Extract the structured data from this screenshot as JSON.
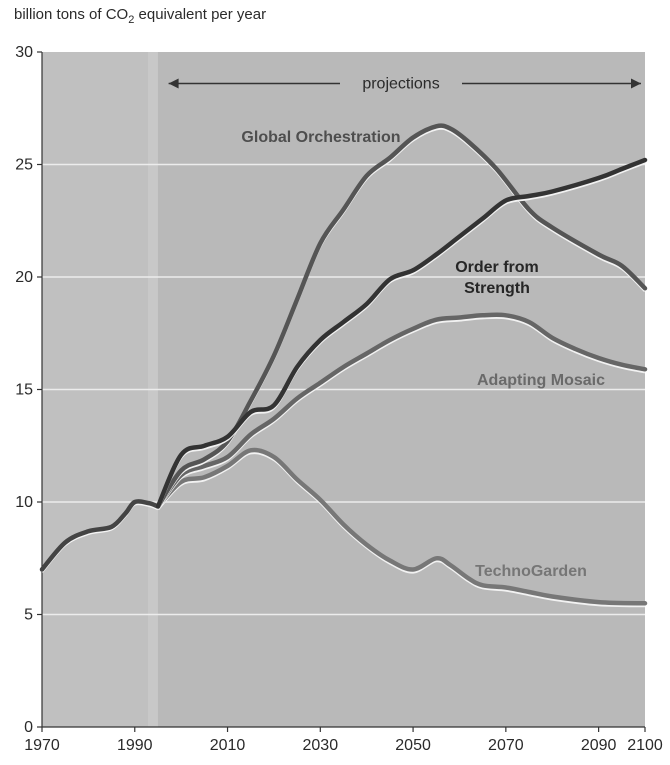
{
  "chart_data": {
    "type": "line",
    "ylabel_prefix": "billion tons of CO",
    "ylabel_subscript": "2",
    "ylabel_suffix": " equivalent per year",
    "projections_label": "projections",
    "xlim": [
      1970,
      2100
    ],
    "ylim": [
      0,
      30
    ],
    "x_ticks": [
      "1970",
      "1990",
      "2010",
      "2030",
      "2050",
      "2070",
      "2090",
      "2100"
    ],
    "x_tick_values": [
      1970,
      1990,
      2010,
      2030,
      2050,
      2070,
      2090,
      2100
    ],
    "y_ticks": [
      "0",
      "5",
      "10",
      "15",
      "20",
      "25",
      "30"
    ],
    "y_tick_values": [
      0,
      5,
      10,
      15,
      20,
      25,
      30
    ],
    "grid": true,
    "colors": {
      "plot_bg": "#b9b9b9",
      "historic_band": "#c6c6c6",
      "grid": "#ececec",
      "axis": "#333333"
    },
    "historical": {
      "x": [
        1970,
        1975,
        1980,
        1985,
        1988,
        1990,
        1993,
        1995
      ],
      "y": [
        7.0,
        8.2,
        8.7,
        8.9,
        9.5,
        10.0,
        9.95,
        9.8
      ],
      "color": "#444444"
    },
    "projection_start": 1995,
    "series": [
      {
        "name": "Global Orchestration",
        "color": "#555555",
        "x": [
          1995,
          2000,
          2005,
          2010,
          2015,
          2020,
          2025,
          2030,
          2035,
          2040,
          2045,
          2050,
          2055,
          2058,
          2062,
          2068,
          2075,
          2080,
          2090,
          2095,
          2100
        ],
        "y": [
          9.8,
          11.4,
          11.9,
          12.7,
          14.5,
          16.5,
          19.0,
          21.5,
          23.0,
          24.5,
          25.3,
          26.2,
          26.7,
          26.6,
          26.0,
          24.8,
          23.0,
          22.2,
          21.0,
          20.5,
          19.5
        ]
      },
      {
        "name": "Order from Strength",
        "color": "#333333",
        "x": [
          1995,
          2000,
          2005,
          2010,
          2015,
          2020,
          2025,
          2030,
          2035,
          2040,
          2045,
          2050,
          2055,
          2060,
          2065,
          2070,
          2075,
          2080,
          2090,
          2095,
          2100
        ],
        "y": [
          9.8,
          12.1,
          12.5,
          12.9,
          14.0,
          14.3,
          16.0,
          17.2,
          18.0,
          18.8,
          19.9,
          20.3,
          21.0,
          21.8,
          22.6,
          23.4,
          23.6,
          23.8,
          24.4,
          24.8,
          25.2
        ]
      },
      {
        "name": "Adapting Mosaic",
        "color": "#666666",
        "x": [
          1995,
          2000,
          2005,
          2010,
          2015,
          2020,
          2025,
          2030,
          2035,
          2040,
          2045,
          2050,
          2055,
          2060,
          2065,
          2070,
          2075,
          2080,
          2085,
          2090,
          2095,
          2100
        ],
        "y": [
          9.8,
          11.2,
          11.6,
          12.0,
          13.0,
          13.7,
          14.6,
          15.3,
          16.0,
          16.6,
          17.2,
          17.7,
          18.1,
          18.2,
          18.3,
          18.3,
          18.0,
          17.3,
          16.8,
          16.4,
          16.1,
          15.9
        ]
      },
      {
        "name": "TechnoGarden",
        "color": "#777777",
        "x": [
          1995,
          2000,
          2005,
          2010,
          2015,
          2020,
          2025,
          2030,
          2035,
          2040,
          2045,
          2050,
          2055,
          2058,
          2062,
          2065,
          2070,
          2075,
          2080,
          2090,
          2100
        ],
        "y": [
          9.8,
          10.9,
          11.1,
          11.6,
          12.3,
          12.0,
          11.0,
          10.1,
          9.0,
          8.1,
          7.4,
          7.0,
          7.5,
          7.2,
          6.6,
          6.3,
          6.2,
          6.0,
          5.8,
          5.55,
          5.5
        ]
      }
    ],
    "series_labels": [
      {
        "lines": [
          "Global Orchestration"
        ],
        "color": "#4e4e4e"
      },
      {
        "lines": [
          "Order from",
          "Strength"
        ],
        "color": "#262626"
      },
      {
        "lines": [
          "Adapting Mosaic"
        ],
        "color": "#6a6a6a"
      },
      {
        "lines": [
          "TechnoGarden"
        ],
        "color": "#767676"
      }
    ]
  }
}
